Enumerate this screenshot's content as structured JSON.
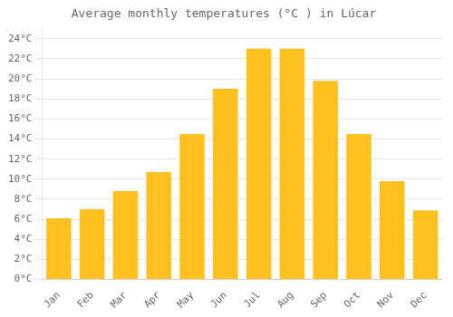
{
  "chart_data": {
    "type": "bar",
    "title": "Average monthly temperatures (°C ) in Lúcar",
    "categories": [
      "Jan",
      "Feb",
      "Mar",
      "Apr",
      "May",
      "Jun",
      "Jul",
      "Aug",
      "Sep",
      "Oct",
      "Nov",
      "Dec"
    ],
    "values": [
      6.1,
      7.0,
      8.8,
      10.7,
      14.5,
      19.0,
      23.0,
      23.0,
      19.8,
      14.5,
      9.8,
      6.9
    ],
    "color": "#FFC020",
    "ylim": [
      0,
      25
    ],
    "yticks": [
      {
        "value": 0,
        "label": "0°C"
      },
      {
        "value": 2,
        "label": "2°C"
      },
      {
        "value": 4,
        "label": "4°C"
      },
      {
        "value": 6,
        "label": "6°C"
      },
      {
        "value": 8,
        "label": "8°C"
      },
      {
        "value": 10,
        "label": "10°C"
      },
      {
        "value": 12,
        "label": "12°C"
      },
      {
        "value": 14,
        "label": "14°C"
      },
      {
        "value": 16,
        "label": "16°C"
      },
      {
        "value": 18,
        "label": "18°C"
      },
      {
        "value": 20,
        "label": "20°C"
      },
      {
        "value": 22,
        "label": "22°C"
      },
      {
        "value": 24,
        "label": "24°C"
      }
    ],
    "grid": true
  }
}
